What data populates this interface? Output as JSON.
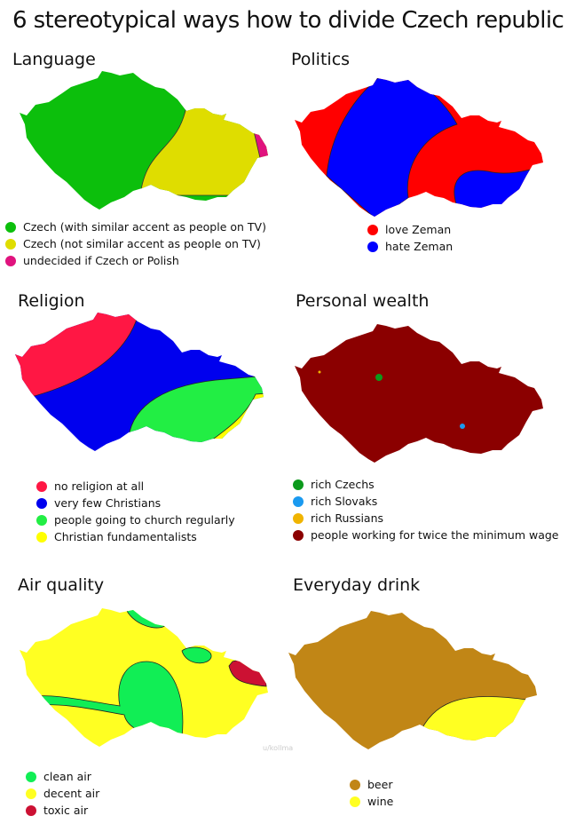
{
  "title": "6 stereotypical ways how to divide Czech republic",
  "watermark": "u/kollma",
  "panels": {
    "language": {
      "title": "Language",
      "legend": [
        {
          "label": "Czech (with similar accent as people on TV)",
          "color": "#0cbf0c"
        },
        {
          "label": "Czech (not similar accent as people on TV)",
          "color": "#dfdd00"
        },
        {
          "label": "undecided if Czech or Polish",
          "color": "#e0137e"
        }
      ]
    },
    "politics": {
      "title": "Politics",
      "legend": [
        {
          "label": "love Zeman",
          "color": "#ff0000"
        },
        {
          "label": "hate Zeman",
          "color": "#0000ff"
        }
      ]
    },
    "religion": {
      "title": "Religion",
      "legend": [
        {
          "label": "no religion at all",
          "color": "#ff1744"
        },
        {
          "label": "very few Christians",
          "color": "#0000ee"
        },
        {
          "label": "people going to church regularly",
          "color": "#22ee44"
        },
        {
          "label": "Christian fundamentalists",
          "color": "#ffff00"
        }
      ]
    },
    "wealth": {
      "title": "Personal wealth",
      "legend": [
        {
          "label": "rich Czechs",
          "color": "#0c9a1c"
        },
        {
          "label": "rich Slovaks",
          "color": "#1a9af0"
        },
        {
          "label": "rich Russians",
          "color": "#f0b400"
        },
        {
          "label": "people working for twice the minimum wage",
          "color": "#8b0000"
        }
      ]
    },
    "air": {
      "title": "Air quality",
      "legend": [
        {
          "label": "clean air",
          "color": "#11ee55"
        },
        {
          "label": "decent air",
          "color": "#ffff22"
        },
        {
          "label": "toxic air",
          "color": "#cc1133"
        }
      ]
    },
    "drink": {
      "title": "Everyday drink",
      "legend": [
        {
          "label": "beer",
          "color": "#c18616"
        },
        {
          "label": "wine",
          "color": "#ffff22"
        }
      ]
    }
  }
}
